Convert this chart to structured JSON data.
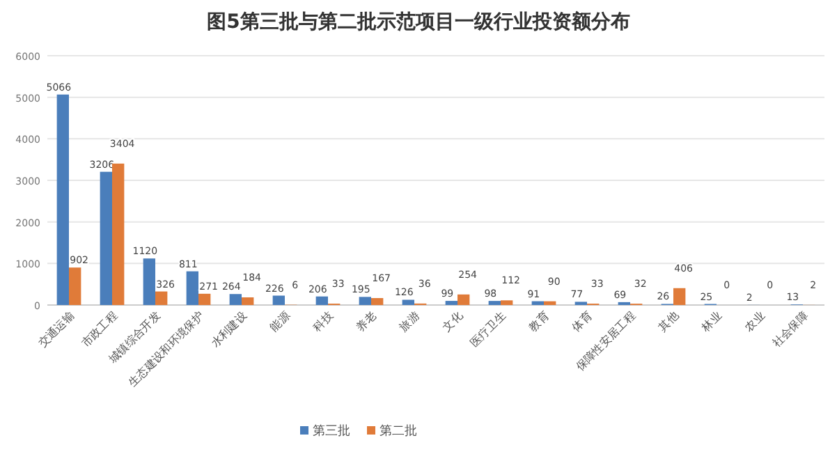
{
  "chart_data": {
    "type": "bar",
    "title": "图5第三批与第二批示范项目一级行业投资额分布",
    "categories": [
      "交通运输",
      "市政工程",
      "城镇综合开发",
      "生态建设和环境保护",
      "水利建设",
      "能源",
      "科技",
      "养老",
      "旅游",
      "文化",
      "医疗卫生",
      "教育",
      "体育",
      "保障性安居工程",
      "其他",
      "林业",
      "农业",
      "社会保障"
    ],
    "series": [
      {
        "name": "第三批",
        "color": "#4a7ebb",
        "values": [
          5066,
          3206,
          1120,
          811,
          264,
          226,
          206,
          195,
          126,
          99,
          98,
          91,
          77,
          69,
          26,
          25,
          2,
          13
        ]
      },
      {
        "name": "第二批",
        "color": "#e07b39",
        "values": [
          902,
          3404,
          326,
          271,
          184,
          6,
          33,
          167,
          36,
          254,
          112,
          90,
          33,
          32,
          406,
          0,
          0,
          2
        ]
      }
    ],
    "ylim": [
      0,
      6000
    ],
    "yticks": [
      0,
      1000,
      2000,
      3000,
      4000,
      5000,
      6000
    ],
    "grid": "y",
    "legend": "bottom",
    "data_labels": true
  }
}
